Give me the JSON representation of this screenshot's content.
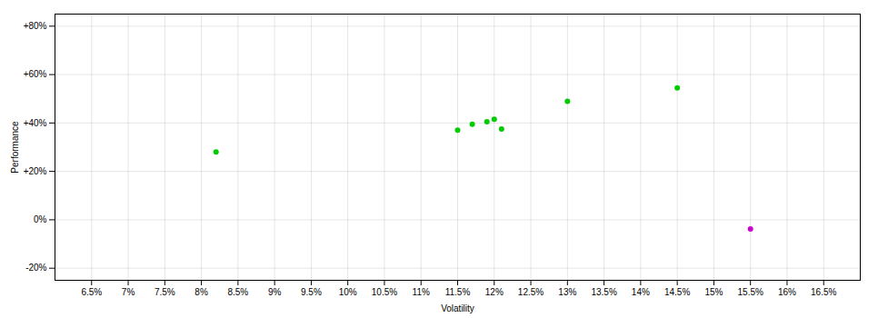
{
  "chart_data": {
    "type": "scatter",
    "xlabel": "Volatility",
    "ylabel": "Performance",
    "xlim": [
      0.06,
      0.17
    ],
    "ylim": [
      -0.25,
      0.85
    ],
    "xticks": [
      {
        "value": 0.065,
        "label": "6.5%"
      },
      {
        "value": 0.07,
        "label": "7%"
      },
      {
        "value": 0.075,
        "label": "7.5%"
      },
      {
        "value": 0.08,
        "label": "8%"
      },
      {
        "value": 0.085,
        "label": "8.5%"
      },
      {
        "value": 0.09,
        "label": "9%"
      },
      {
        "value": 0.095,
        "label": "9.5%"
      },
      {
        "value": 0.1,
        "label": "10%"
      },
      {
        "value": 0.105,
        "label": "10.5%"
      },
      {
        "value": 0.11,
        "label": "11%"
      },
      {
        "value": 0.115,
        "label": "11.5%"
      },
      {
        "value": 0.12,
        "label": "12%"
      },
      {
        "value": 0.125,
        "label": "12.5%"
      },
      {
        "value": 0.13,
        "label": "13%"
      },
      {
        "value": 0.135,
        "label": "13.5%"
      },
      {
        "value": 0.14,
        "label": "14%"
      },
      {
        "value": 0.145,
        "label": "14.5%"
      },
      {
        "value": 0.15,
        "label": "15%"
      },
      {
        "value": 0.155,
        "label": "15.5%"
      },
      {
        "value": 0.16,
        "label": "16%"
      },
      {
        "value": 0.165,
        "label": "16.5%"
      }
    ],
    "yticks": [
      {
        "value": -0.2,
        "label": "-20%"
      },
      {
        "value": 0.0,
        "label": "0%"
      },
      {
        "value": 0.2,
        "label": "+20%"
      },
      {
        "value": 0.4,
        "label": "+40%"
      },
      {
        "value": 0.6,
        "label": "+60%"
      },
      {
        "value": 0.8,
        "label": "+80%"
      }
    ],
    "grid": true,
    "series": [
      {
        "color": "#00cc00",
        "x": [
          0.082,
          0.115,
          0.117,
          0.119,
          0.12,
          0.121,
          0.13,
          0.145
        ],
        "values": [
          0.28,
          0.37,
          0.395,
          0.405,
          0.415,
          0.375,
          0.49,
          0.545
        ]
      },
      {
        "color": "#cc00cc",
        "x": [
          0.155
        ],
        "values": [
          -0.038
        ]
      }
    ]
  }
}
